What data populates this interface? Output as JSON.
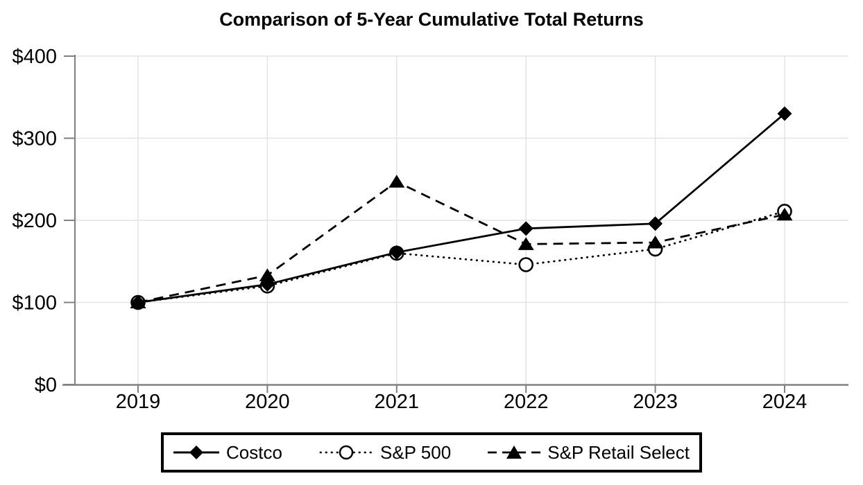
{
  "chart_data": {
    "type": "line",
    "title": "Comparison of 5-Year Cumulative Total Returns",
    "x_labels": [
      "2019",
      "2020",
      "2021",
      "2022",
      "2023",
      "2024"
    ],
    "y_ticks": [
      0,
      100,
      200,
      300,
      400
    ],
    "y_tick_labels": [
      "$0",
      "$100",
      "$200",
      "$300",
      "$400"
    ],
    "ylim": [
      0,
      400
    ],
    "grid": true,
    "legend_position": "bottom",
    "series": [
      {
        "name": "Costco",
        "line_style": "solid",
        "marker": "filled-diamond",
        "color": "#000000",
        "values": [
          100,
          122,
          161,
          190,
          196,
          330
        ]
      },
      {
        "name": "S&P 500",
        "line_style": "dotted",
        "marker": "open-circle",
        "color": "#000000",
        "values": [
          100,
          120,
          160,
          146,
          165,
          211
        ]
      },
      {
        "name": "S&P Retail Select",
        "line_style": "dashed",
        "marker": "filled-triangle",
        "color": "#000000",
        "values": [
          100,
          133,
          247,
          171,
          173,
          207
        ]
      }
    ],
    "colors": {
      "background": "#ffffff",
      "grid": "#e3e3e3",
      "axis": "#808080",
      "text": "#000000",
      "series": "#000000"
    }
  }
}
